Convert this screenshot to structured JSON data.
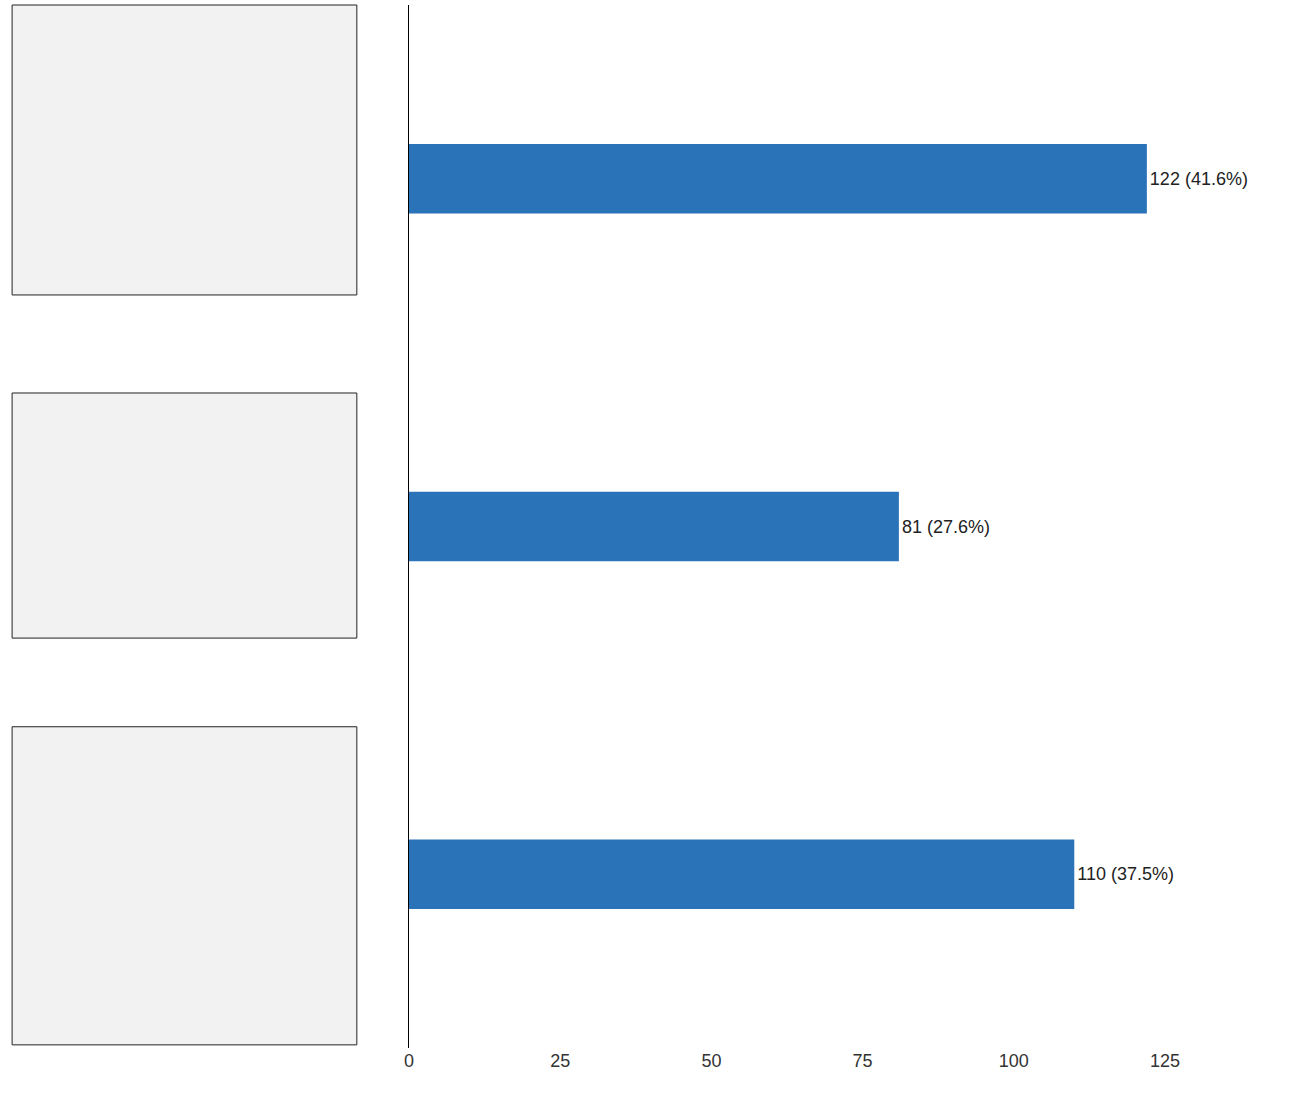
{
  "chart_data": {
    "type": "bar",
    "orientation": "horizontal",
    "categories": [
      null,
      null,
      null
    ],
    "values": [
      122,
      81,
      110
    ],
    "value_labels": [
      "122 (41.6%)",
      "81 (27.6%)",
      "110 (37.5%)"
    ],
    "data_labels": true,
    "color": "#2b73b9",
    "xlim": [
      0,
      125
    ],
    "xticks": [
      0,
      25,
      50,
      75,
      100,
      125
    ],
    "grid": false,
    "tick_labels": "x"
  }
}
